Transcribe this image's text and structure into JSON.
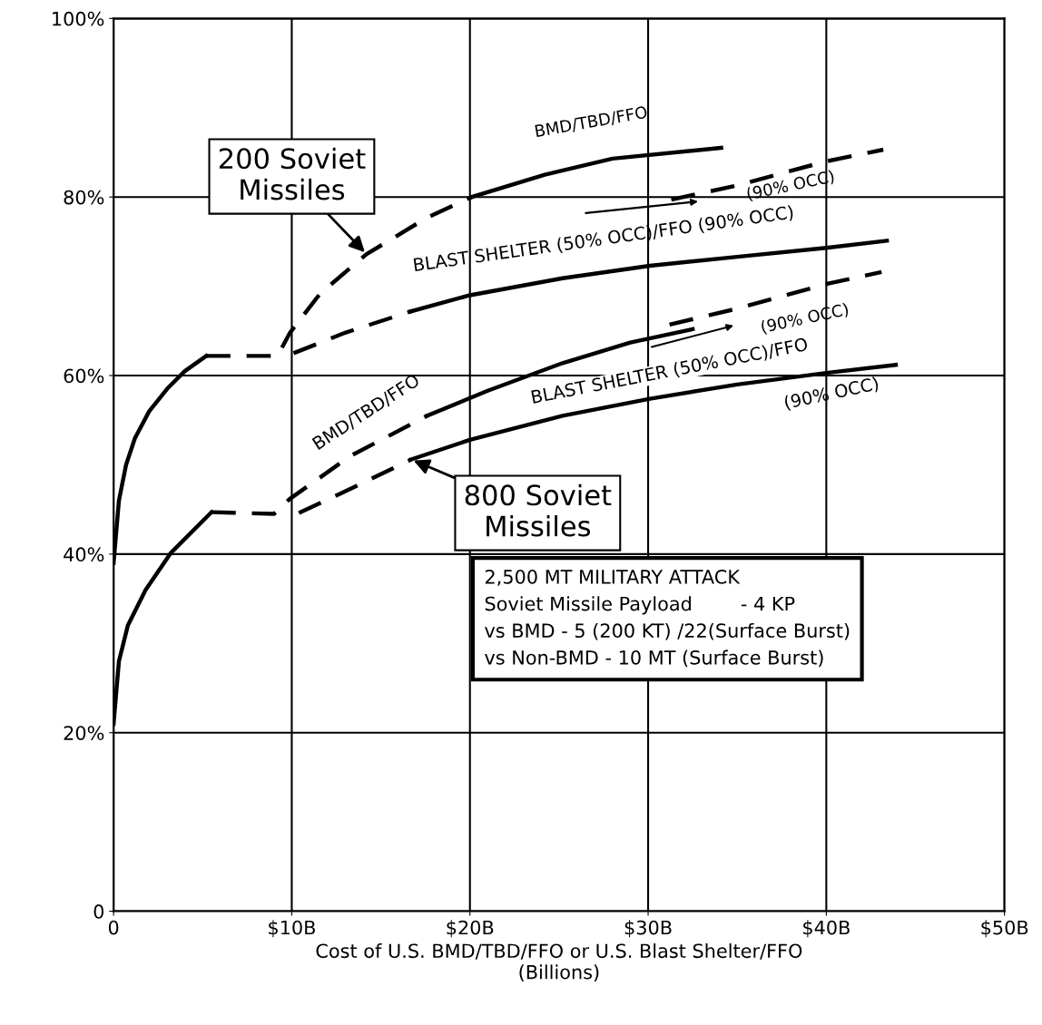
{
  "chart_data": {
    "type": "line",
    "xlabel": "Cost of U.S. BMD/TBD/FFO or U.S. Blast Shelter/FFO\n(Billions)",
    "xlim": [
      0,
      50
    ],
    "ylim": [
      0,
      100
    ],
    "xticks": [
      0,
      {
        "value": 10,
        "label": "$10B"
      },
      {
        "value": 20,
        "label": "$20B"
      },
      {
        "value": 30,
        "label": "$30B"
      },
      {
        "value": 40,
        "label": "$40B"
      },
      {
        "value": 50,
        "label": "$50B"
      }
    ],
    "yticks": [
      0,
      {
        "value": 20,
        "label": "20%"
      },
      {
        "value": 40,
        "label": "40%"
      },
      {
        "value": 60,
        "label": "60%"
      },
      {
        "value": 80,
        "label": "80%"
      },
      {
        "value": 100,
        "label": "100%"
      }
    ],
    "grid": true,
    "marker": "none",
    "series": [
      {
        "color": "#000000",
        "line_style": "solid",
        "x": [
          0,
          0.3,
          0.7,
          1.2,
          2,
          3,
          4,
          5.2
        ],
        "values": [
          39,
          46,
          50,
          53,
          56,
          58.5,
          60.5,
          62.2
        ]
      },
      {
        "color": "#000000",
        "line_style": "dashed",
        "x": [
          5.2,
          9.2,
          9.9,
          11.6,
          14.2,
          17.6,
          20.1
        ],
        "values": [
          62.2,
          62.2,
          64.8,
          69.2,
          73.6,
          77.7,
          80
        ]
      },
      {
        "color": "#000000",
        "line_style": "solid",
        "x": [
          20.1,
          24.2,
          28,
          34.1
        ],
        "values": [
          80,
          82.5,
          84.3,
          85.5
        ]
      },
      {
        "color": "#000000",
        "line_style": "dashed",
        "x": [
          31.3,
          35,
          40,
          43.2
        ],
        "values": [
          79.7,
          81.3,
          84,
          85.3
        ]
      },
      {
        "color": "#000000",
        "line_style": "dashed",
        "x": [
          10.1,
          13,
          16.7
        ],
        "values": [
          62.5,
          64.8,
          67.2
        ]
      },
      {
        "color": "#000000",
        "line_style": "solid",
        "x": [
          16.7,
          20,
          25.2,
          30.1,
          35,
          40,
          43.4
        ],
        "values": [
          67.2,
          69,
          70.9,
          72.3,
          73.3,
          74.3,
          75.1
        ]
      },
      {
        "color": "#000000",
        "line_style": "solid",
        "x": [
          0,
          0.3,
          0.8,
          1.8,
          3.2,
          5.5
        ],
        "values": [
          21,
          28,
          32,
          36,
          40.1,
          44.7
        ]
      },
      {
        "color": "#000000",
        "line_style": "dashed",
        "x": [
          5.5,
          9,
          9.9,
          13.3,
          17.6
        ],
        "values": [
          44.7,
          44.5,
          46.2,
          51,
          55.5
        ]
      },
      {
        "color": "#000000",
        "line_style": "solid",
        "x": [
          17.6,
          21,
          25.2,
          29,
          32.5
        ],
        "values": [
          55.5,
          58.3,
          61.4,
          63.7,
          65.2
        ]
      },
      {
        "color": "#000000",
        "line_style": "dashed",
        "x": [
          31.2,
          35,
          40.1,
          43.1
        ],
        "values": [
          65.7,
          67.5,
          70.3,
          71.6
        ]
      },
      {
        "color": "#000000",
        "line_style": "dashed",
        "x": [
          10.4,
          13.5,
          16.7
        ],
        "values": [
          44.6,
          47.5,
          50.6
        ]
      },
      {
        "color": "#000000",
        "line_style": "solid",
        "x": [
          16.7,
          20,
          25.2,
          30.1,
          35,
          40,
          43.9
        ],
        "values": [
          50.6,
          52.8,
          55.5,
          57.4,
          59,
          60.3,
          61.2
        ]
      }
    ],
    "annotations": [
      {
        "text": "200 Soviet\nMissiles",
        "x": 14.2,
        "y": 73.6
      },
      {
        "text": "800 Soviet\nMissiles",
        "x": 16.7,
        "y": 50.6
      },
      "BMD/TBD/FFO",
      "BLAST SHELTER (50% OCC)/FFO (90% OCC)",
      "(90% OCC)",
      "BMD/TBD/FFO",
      "BLAST SHELTER (50% OCC)/FFO",
      "(90% OCC)",
      "(90% OCC)",
      "2,500 MT MILITARY ATTACK\nSoviet Missile Payload        - 4 KP\nvs BMD - 5 (200 KT) /22(Surface Burst)\nvs Non-BMD - 10 MT (Surface Burst)"
    ]
  }
}
